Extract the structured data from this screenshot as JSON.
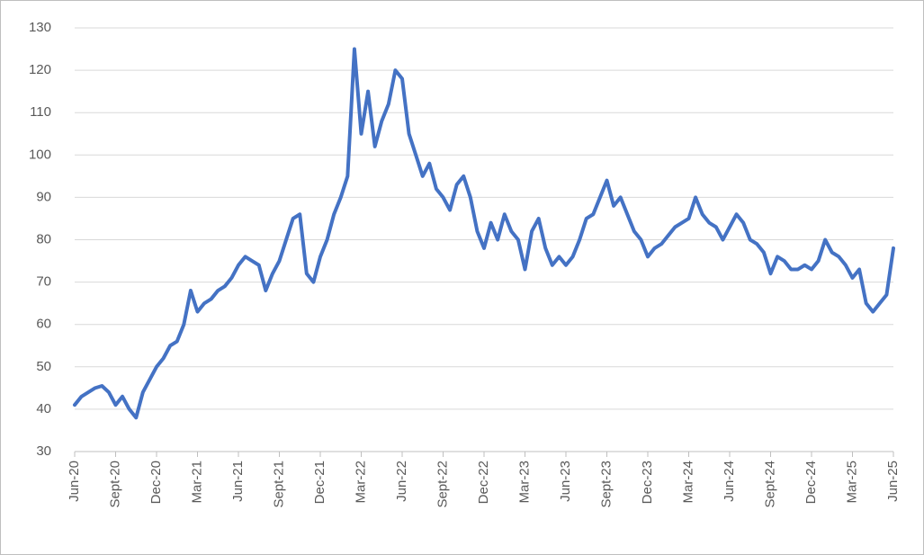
{
  "chart_data": {
    "type": "line",
    "color": "#4472c4",
    "grid": true,
    "ylim": [
      30,
      130
    ],
    "yticks": [
      30,
      40,
      50,
      60,
      70,
      80,
      90,
      100,
      110,
      120,
      130
    ],
    "categories": [
      "Jun-20",
      null,
      null,
      null,
      null,
      null,
      "Sept-20",
      null,
      null,
      null,
      null,
      null,
      "Dec-20",
      null,
      null,
      null,
      null,
      null,
      "Mar-21",
      null,
      null,
      null,
      null,
      null,
      "Jun-21",
      null,
      null,
      null,
      null,
      null,
      "Sept-21",
      null,
      null,
      null,
      null,
      null,
      "Dec-21",
      null,
      null,
      null,
      null,
      null,
      "Mar-22",
      null,
      null,
      null,
      null,
      null,
      "Jun-22",
      null,
      null,
      null,
      null,
      null,
      "Sept-22",
      null,
      null,
      null,
      null,
      null,
      "Dec-22",
      null,
      null,
      null,
      null,
      null,
      "Mar-23",
      null,
      null,
      null,
      null,
      null,
      "Jun-23",
      null,
      null,
      null,
      null,
      null,
      "Sept-23",
      null,
      null,
      null,
      null,
      null,
      "Dec-23",
      null,
      null,
      null,
      null,
      null,
      "Mar-24",
      null,
      null,
      null,
      null,
      null,
      "Jun-24",
      null,
      null,
      null,
      null,
      null,
      "Sept-24",
      null,
      null,
      null,
      null,
      null,
      "Dec-24",
      null,
      null,
      null,
      null,
      null,
      "Mar-25",
      null,
      null,
      null,
      null,
      null,
      "Jun-25"
    ],
    "values": [
      41,
      43,
      44,
      45,
      45.5,
      44,
      41,
      43,
      40,
      38,
      44,
      47,
      50,
      52,
      55,
      56,
      60,
      68,
      63,
      65,
      66,
      68,
      69,
      71,
      74,
      76,
      75,
      74,
      68,
      72,
      75,
      80,
      85,
      86,
      72,
      70,
      76,
      80,
      86,
      90,
      95,
      125,
      105,
      115,
      102,
      108,
      112,
      120,
      118,
      105,
      100,
      95,
      98,
      92,
      90,
      87,
      93,
      95,
      90,
      82,
      78,
      84,
      80,
      86,
      82,
      80,
      73,
      82,
      85,
      78,
      74,
      76,
      74,
      76,
      80,
      85,
      86,
      90,
      94,
      88,
      90,
      86,
      82,
      80,
      76,
      78,
      79,
      81,
      83,
      84,
      85,
      90,
      86,
      84,
      83,
      80,
      83,
      86,
      84,
      80,
      79,
      77,
      72,
      76,
      75,
      73,
      73,
      74,
      73,
      75,
      80,
      77,
      76,
      74,
      71,
      73,
      65,
      63,
      65,
      67,
      78
    ]
  }
}
